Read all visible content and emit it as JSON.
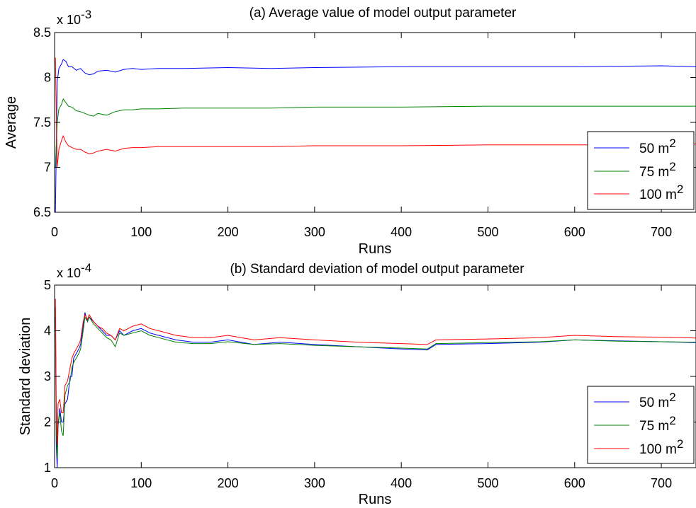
{
  "chart_data": [
    {
      "type": "line",
      "title": "(a) Average value of model output parameter",
      "xlabel": "Runs",
      "ylabel": "Average",
      "xlim": [
        0,
        740
      ],
      "ylim": [
        6.5,
        8.5
      ],
      "multiplier_label": "x 10",
      "multiplier_exponent": "-3",
      "x_ticks": [
        "0",
        "100",
        "200",
        "300",
        "400",
        "500",
        "600",
        "700"
      ],
      "y_ticks": [
        "6.5",
        "7",
        "7.5",
        "8",
        "8.5"
      ],
      "grid": false,
      "legend_position": "right",
      "legend": [
        {
          "base": "50 m",
          "sup": "2"
        },
        {
          "base": "75 m",
          "sup": "2"
        },
        {
          "base": "100 m",
          "sup": "2"
        }
      ],
      "series": [
        {
          "color": "#0000ff",
          "x": [
            1,
            3,
            5,
            8,
            10,
            13,
            16,
            20,
            25,
            30,
            35,
            40,
            45,
            50,
            60,
            70,
            80,
            90,
            100,
            120,
            150,
            200,
            250,
            300,
            400,
            500,
            600,
            700,
            740
          ],
          "y": [
            6.5,
            7.95,
            8.1,
            8.15,
            8.2,
            8.18,
            8.12,
            8.12,
            8.08,
            8.1,
            8.05,
            8.03,
            8.04,
            8.07,
            8.08,
            8.06,
            8.09,
            8.1,
            8.09,
            8.1,
            8.1,
            8.11,
            8.1,
            8.11,
            8.12,
            8.12,
            8.12,
            8.13,
            8.12
          ]
        },
        {
          "color": "#008000",
          "x": [
            1,
            3,
            5,
            8,
            10,
            13,
            16,
            20,
            25,
            30,
            35,
            40,
            45,
            50,
            60,
            70,
            80,
            90,
            100,
            120,
            150,
            200,
            250,
            300,
            400,
            500,
            600,
            700,
            740
          ],
          "y": [
            7.0,
            7.5,
            7.65,
            7.7,
            7.76,
            7.72,
            7.68,
            7.67,
            7.63,
            7.62,
            7.6,
            7.58,
            7.57,
            7.6,
            7.58,
            7.62,
            7.64,
            7.64,
            7.65,
            7.65,
            7.66,
            7.66,
            7.66,
            7.67,
            7.67,
            7.68,
            7.68,
            7.68,
            7.68
          ]
        },
        {
          "color": "#ff0000",
          "x": [
            1,
            3,
            5,
            8,
            10,
            13,
            16,
            20,
            25,
            30,
            35,
            40,
            45,
            50,
            60,
            70,
            80,
            90,
            100,
            120,
            150,
            200,
            250,
            300,
            400,
            500,
            600,
            700,
            740
          ],
          "y": [
            8.22,
            7.0,
            7.2,
            7.3,
            7.35,
            7.28,
            7.24,
            7.22,
            7.2,
            7.2,
            7.17,
            7.15,
            7.16,
            7.18,
            7.2,
            7.18,
            7.21,
            7.22,
            7.22,
            7.23,
            7.23,
            7.23,
            7.23,
            7.24,
            7.24,
            7.25,
            7.25,
            7.25,
            7.26
          ]
        }
      ]
    },
    {
      "type": "line",
      "title": "(b) Standard deviation of model output parameter",
      "xlabel": "Runs",
      "ylabel": "Standard deviation",
      "xlim": [
        0,
        740
      ],
      "ylim": [
        1,
        5
      ],
      "multiplier_label": "x 10",
      "multiplier_exponent": "-4",
      "x_ticks": [
        "0",
        "100",
        "200",
        "300",
        "400",
        "500",
        "600",
        "700"
      ],
      "y_ticks": [
        "1",
        "2",
        "3",
        "4",
        "5"
      ],
      "grid": false,
      "legend_position": "right",
      "legend": [
        {
          "base": "50 m",
          "sup": "2"
        },
        {
          "base": "75 m",
          "sup": "2"
        },
        {
          "base": "100 m",
          "sup": "2"
        }
      ],
      "series": [
        {
          "color": "#0000ff",
          "x": [
            1,
            2,
            3,
            4,
            6,
            8,
            10,
            12,
            15,
            18,
            20,
            22,
            25,
            28,
            30,
            33,
            35,
            38,
            40,
            45,
            50,
            55,
            60,
            65,
            70,
            75,
            80,
            90,
            100,
            110,
            120,
            140,
            160,
            180,
            200,
            230,
            260,
            300,
            350,
            400,
            430,
            440,
            500,
            560,
            600,
            650,
            700,
            740
          ],
          "y": [
            4.3,
            1.5,
            1.0,
            1.9,
            2.3,
            2.0,
            2.0,
            2.4,
            2.5,
            3.0,
            3.0,
            3.4,
            3.5,
            3.6,
            3.7,
            4.1,
            4.4,
            4.2,
            4.3,
            4.2,
            4.1,
            4.0,
            3.9,
            3.9,
            3.8,
            4.0,
            3.9,
            4.0,
            4.05,
            3.95,
            3.9,
            3.8,
            3.75,
            3.75,
            3.8,
            3.7,
            3.75,
            3.7,
            3.65,
            3.6,
            3.58,
            3.7,
            3.72,
            3.75,
            3.8,
            3.78,
            3.76,
            3.74
          ]
        },
        {
          "color": "#008000",
          "x": [
            1,
            2,
            3,
            4,
            6,
            8,
            10,
            12,
            15,
            18,
            20,
            22,
            25,
            28,
            30,
            33,
            35,
            38,
            40,
            45,
            50,
            55,
            60,
            65,
            70,
            75,
            80,
            90,
            100,
            110,
            120,
            140,
            160,
            180,
            200,
            230,
            260,
            300,
            350,
            400,
            430,
            440,
            500,
            560,
            600,
            650,
            700,
            740
          ],
          "y": [
            4.5,
            1.8,
            1.2,
            2.0,
            2.2,
            1.8,
            1.7,
            2.6,
            2.8,
            2.9,
            3.2,
            3.3,
            3.4,
            3.5,
            3.6,
            4.0,
            4.3,
            4.2,
            4.3,
            4.15,
            4.05,
            3.95,
            3.85,
            3.8,
            3.65,
            3.95,
            3.9,
            3.95,
            4.0,
            3.9,
            3.85,
            3.75,
            3.72,
            3.72,
            3.76,
            3.7,
            3.72,
            3.68,
            3.65,
            3.62,
            3.6,
            3.72,
            3.74,
            3.76,
            3.8,
            3.77,
            3.76,
            3.75
          ]
        },
        {
          "color": "#ff0000",
          "x": [
            1,
            2,
            3,
            4,
            6,
            8,
            10,
            12,
            15,
            18,
            20,
            22,
            25,
            28,
            30,
            33,
            35,
            38,
            40,
            45,
            50,
            55,
            60,
            65,
            70,
            75,
            80,
            90,
            100,
            110,
            120,
            140,
            160,
            180,
            200,
            230,
            260,
            300,
            350,
            400,
            430,
            440,
            500,
            560,
            600,
            650,
            700,
            740
          ],
          "y": [
            4.7,
            2.3,
            1.5,
            2.4,
            2.5,
            2.2,
            2.2,
            2.8,
            2.9,
            3.2,
            3.4,
            3.5,
            3.6,
            3.7,
            3.8,
            4.2,
            4.35,
            4.25,
            4.35,
            4.2,
            4.1,
            4.05,
            3.95,
            3.9,
            3.8,
            4.05,
            4.0,
            4.1,
            4.15,
            4.05,
            4.0,
            3.9,
            3.85,
            3.85,
            3.9,
            3.8,
            3.85,
            3.8,
            3.75,
            3.72,
            3.7,
            3.8,
            3.82,
            3.85,
            3.9,
            3.87,
            3.86,
            3.84
          ]
        }
      ]
    }
  ]
}
